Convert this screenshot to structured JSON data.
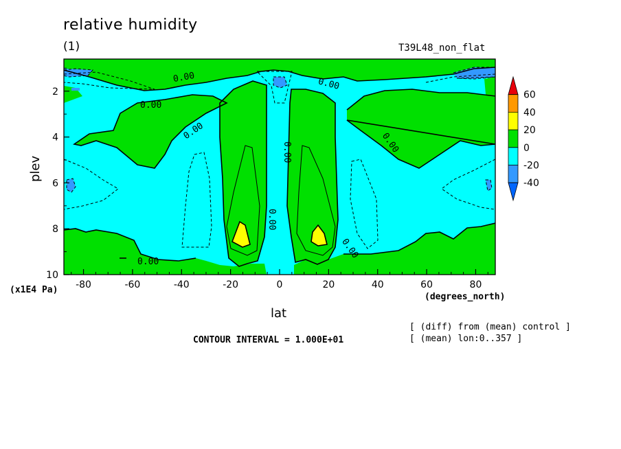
{
  "chart_data": {
    "type": "heatmap",
    "title": "relative humidity",
    "subtitle": "(1)",
    "run_label": "T39L48_non_flat",
    "xlabel": "lat",
    "xunits": "(degrees_north)",
    "ylabel": "plev",
    "yunits": "(x1E4 Pa)",
    "xlim": [
      -88,
      88
    ],
    "ylim": [
      10,
      0.6
    ],
    "xticks": [
      -80,
      -60,
      -40,
      -20,
      0,
      20,
      40,
      60,
      80
    ],
    "yticks": [
      2,
      4,
      6,
      8,
      10
    ],
    "contour_interval": "CONTOUR INTERVAL = 1.000E+01",
    "notes": [
      "[ (diff) from (mean) control ]",
      "[ (mean) lon:0..357 ]"
    ],
    "contour_labels": [
      "0.00",
      "0.00",
      "0.00",
      "0.00",
      "0.00",
      "0.00",
      "0.00",
      "0.00",
      "0.00"
    ],
    "legend": {
      "levels": [
        "60",
        "40",
        "20",
        "0",
        "-20",
        "-40"
      ],
      "colors": [
        "#e8000b",
        "#ff9900",
        "#ffff00",
        "#00e000",
        "#00ffff",
        "#3399ff",
        "#0066ff"
      ]
    },
    "regions": {
      "positive": "#00e000",
      "negative": "#00ffff",
      "strong_positive": "#ffff00",
      "strong_negative": "#3399ff"
    }
  }
}
